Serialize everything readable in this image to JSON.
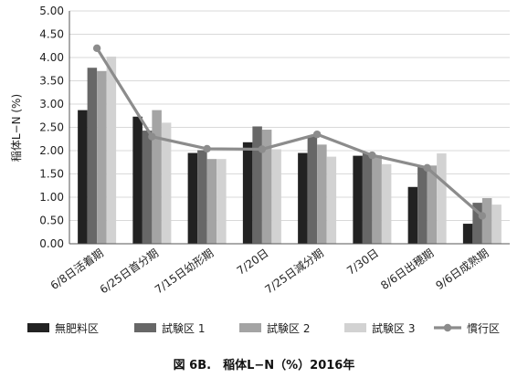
{
  "figure": {
    "caption": "図 6B.　稲体L−N（%）2016年"
  },
  "chart_data": {
    "type": "bar",
    "ylabel": "稲体L−N (%)",
    "xlabel": "",
    "ylim": [
      0,
      5
    ],
    "y_ticks": [
      "0.00",
      "0.50",
      "1.00",
      "1.50",
      "2.00",
      "2.50",
      "3.00",
      "3.50",
      "4.00",
      "4.50",
      "5.00"
    ],
    "categories": [
      "6/8日活着期",
      "6/25日首分期",
      "7/15日幼形期",
      "7/20日",
      "7/25日減分期",
      "7/30日",
      "8/6日出穂期",
      "9/6日成熟期"
    ],
    "series": [
      {
        "name": "無肥料区",
        "kind": "bar",
        "color": "#222222",
        "values": [
          2.87,
          2.73,
          1.95,
          2.18,
          1.95,
          1.89,
          1.22,
          0.43
        ]
      },
      {
        "name": "試験区 1",
        "kind": "bar",
        "color": "#676767",
        "values": [
          3.78,
          2.43,
          2.01,
          2.52,
          2.32,
          1.95,
          1.67,
          0.88
        ]
      },
      {
        "name": "試験区 2",
        "kind": "bar",
        "color": "#a4a4a4",
        "values": [
          3.71,
          2.87,
          1.82,
          2.45,
          2.13,
          1.9,
          1.68,
          0.98
        ]
      },
      {
        "name": "試験区 3",
        "kind": "bar",
        "color": "#d2d2d2",
        "values": [
          4.02,
          2.6,
          1.82,
          2.03,
          1.87,
          1.71,
          1.94,
          0.84
        ]
      },
      {
        "name": "慣行区",
        "kind": "line",
        "color": "#8c8c8c",
        "values": [
          4.2,
          2.3,
          2.04,
          2.03,
          2.35,
          1.9,
          1.63,
          0.6
        ]
      }
    ],
    "grid": "horizontal",
    "legend_position": "bottom"
  }
}
